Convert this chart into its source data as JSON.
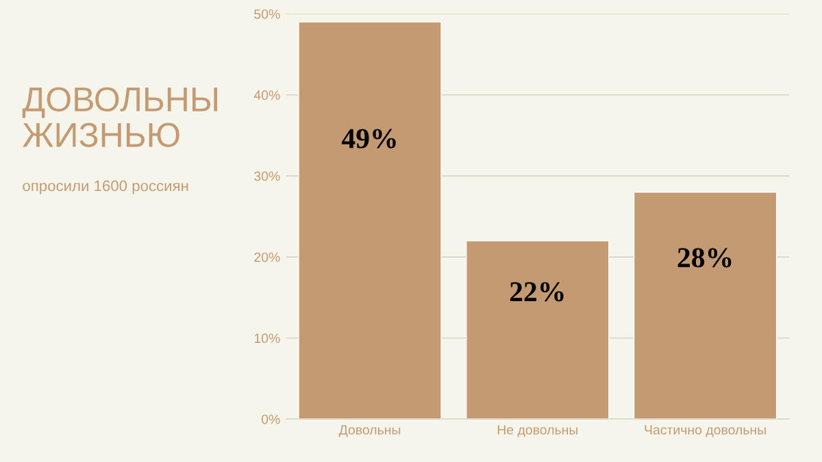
{
  "chart_data": {
    "type": "bar",
    "title": "ДОВОЛЬНЫ\nЖИЗНЬЮ",
    "subtitle": "опросили 1600 россиян",
    "categories": [
      "Довольны",
      "Не довольны",
      "Частично довольны"
    ],
    "values": [
      49,
      22,
      28
    ],
    "value_labels": [
      "49%",
      "22%",
      "28%"
    ],
    "color": "#c49a73",
    "ylim": [
      0,
      50
    ],
    "yticks": [
      {
        "value": 0,
        "label": "0%"
      },
      {
        "value": 10,
        "label": "10%"
      },
      {
        "value": 20,
        "label": "20%"
      },
      {
        "value": 30,
        "label": "30%"
      },
      {
        "value": 40,
        "label": "40%"
      },
      {
        "value": 50,
        "label": "50%"
      }
    ],
    "grid": "y",
    "legend": false
  }
}
